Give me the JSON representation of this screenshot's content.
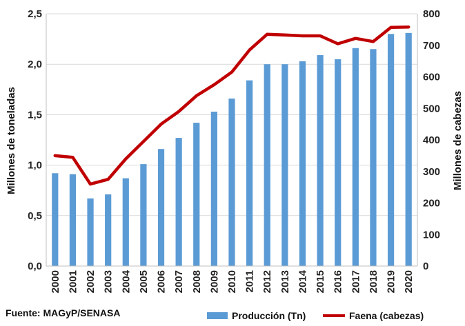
{
  "chart_data": {
    "type": "bar+line",
    "categories": [
      "2000",
      "2001",
      "2002",
      "2003",
      "2004",
      "2005",
      "2006",
      "2007",
      "2008",
      "2009",
      "2010",
      "2011",
      "2012",
      "2013",
      "2014",
      "2015",
      "2016",
      "2017",
      "2018",
      "2019",
      "2020"
    ],
    "series": [
      {
        "name": "Producción (Tn)",
        "type": "bar",
        "axis": "left",
        "color": "#5b9bd5",
        "values": [
          0.92,
          0.91,
          0.67,
          0.71,
          0.87,
          1.01,
          1.16,
          1.27,
          1.42,
          1.53,
          1.66,
          1.84,
          2.0,
          2.0,
          2.03,
          2.09,
          2.05,
          2.16,
          2.15,
          2.3,
          2.31
        ]
      },
      {
        "name": "Faena (cabezas)",
        "type": "line",
        "axis": "right",
        "color": "#c00000",
        "values": [
          350,
          345,
          260,
          275,
          340,
          395,
          450,
          490,
          540,
          575,
          615,
          685,
          735,
          733,
          730,
          730,
          705,
          722,
          712,
          757,
          758
        ]
      }
    ],
    "y_left": {
      "label": "Millones de toneladas",
      "range": [
        0,
        2.5
      ],
      "ticks": [
        0,
        0.5,
        1.0,
        1.5,
        2.0,
        2.5
      ],
      "tick_labels": [
        "0,0",
        "0,5",
        "1,0",
        "1,5",
        "2,0",
        "2,5"
      ]
    },
    "y_right": {
      "label": "Millones de cabezas",
      "range": [
        0,
        800
      ],
      "ticks": [
        0,
        100,
        200,
        300,
        400,
        500,
        600,
        700,
        800
      ],
      "tick_labels": [
        "0",
        "100",
        "200",
        "300",
        "400",
        "500",
        "600",
        "700",
        "800"
      ]
    },
    "grid": "horizontal",
    "legend": {
      "position": "bottom",
      "labels": [
        "Producción (Tn)",
        "Faena (cabezas)"
      ]
    },
    "source": "Fuente: MAGyP/SENASA"
  }
}
